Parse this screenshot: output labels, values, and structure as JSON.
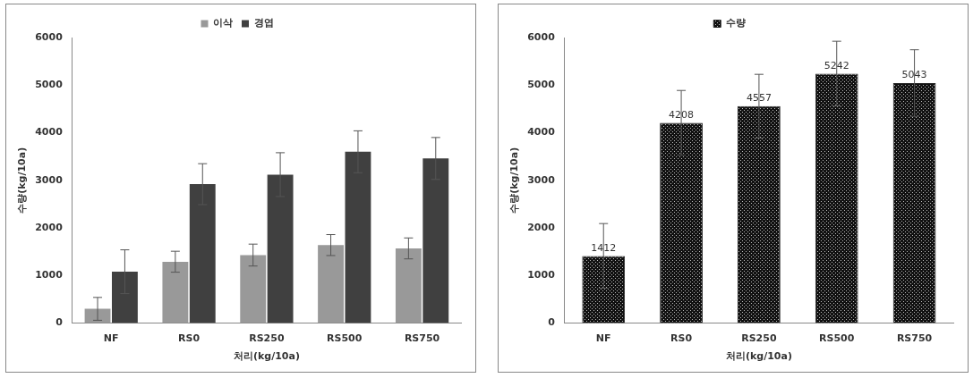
{
  "chart_data": [
    {
      "type": "bar",
      "categories": [
        "NF",
        "RS0",
        "RS250",
        "RS500",
        "RS750"
      ],
      "series": [
        {
          "name": "이삭",
          "color": "#999999",
          "values": [
            300,
            1290,
            1430,
            1640,
            1570
          ],
          "errors": [
            240,
            220,
            230,
            220,
            220
          ]
        },
        {
          "name": "경엽",
          "color": "#404040",
          "values": [
            1080,
            2920,
            3120,
            3600,
            3460
          ],
          "errors": [
            460,
            430,
            460,
            440,
            440
          ]
        }
      ],
      "x_label": "처리(kg/10a)",
      "y_label": "수량(kg/10a)",
      "ylim": [
        0,
        6000
      ],
      "yticks": [
        0,
        1000,
        2000,
        3000,
        4000,
        5000,
        6000
      ],
      "grid": false,
      "legend": "top"
    },
    {
      "type": "bar",
      "categories": [
        "NF",
        "RS0",
        "RS250",
        "RS500",
        "RS750"
      ],
      "series": [
        {
          "name": "수량",
          "color": "#111111",
          "values": [
            1412,
            4208,
            4557,
            5242,
            5043
          ],
          "errors": [
            680,
            680,
            670,
            680,
            700
          ]
        }
      ],
      "x_label": "처리(kg/10a)",
      "y_label": "수량(kg/10a)",
      "ylim": [
        0,
        6000
      ],
      "yticks": [
        0,
        1000,
        2000,
        3000,
        4000,
        5000,
        6000
      ],
      "grid": false,
      "legend": "top",
      "data_labels": true
    }
  ]
}
